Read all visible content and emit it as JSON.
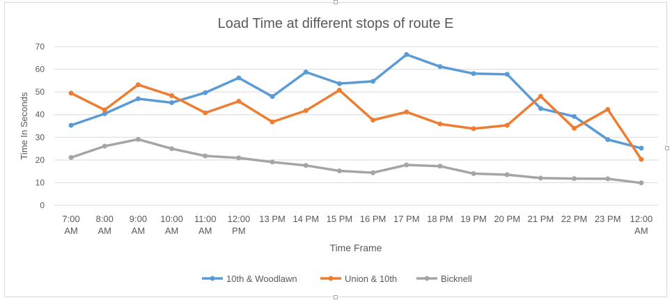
{
  "chart_data": {
    "type": "line",
    "title": "Load Time at different stops of route E",
    "xlabel": "Time Frame",
    "ylabel": "Time In Seconds",
    "ylim": [
      0,
      70
    ],
    "yticks": [
      0,
      10,
      20,
      30,
      40,
      50,
      60,
      70
    ],
    "grid": true,
    "legend_position": "bottom",
    "categories": [
      [
        "7:00",
        "AM"
      ],
      [
        "8:00",
        "AM"
      ],
      [
        "9:00",
        "AM"
      ],
      [
        "10:00",
        "AM"
      ],
      [
        "11:00",
        "AM"
      ],
      [
        "12:00",
        "PM"
      ],
      [
        "13 PM"
      ],
      [
        "14 PM"
      ],
      [
        "15 PM"
      ],
      [
        "16 PM"
      ],
      [
        "17 PM"
      ],
      [
        "18 PM"
      ],
      [
        "19 PM"
      ],
      [
        "20 PM"
      ],
      [
        "21 PM"
      ],
      [
        "22 PM"
      ],
      [
        "23 PM"
      ],
      [
        "12:00",
        "AM"
      ]
    ],
    "series": [
      {
        "name": "10th & Woodlawn",
        "color": "#5b9bd5",
        "values": [
          35.3,
          40.4,
          47,
          45.3,
          49.7,
          56.2,
          48,
          58.8,
          53.7,
          54.7,
          66.5,
          61.2,
          58.1,
          57.8,
          42.7,
          39.2,
          29,
          25.2
        ]
      },
      {
        "name": "Union & 10th",
        "color": "#ed7d31",
        "values": [
          49.5,
          42.1,
          53.2,
          48.4,
          40.8,
          45.9,
          36.8,
          41.8,
          50.8,
          37.6,
          41.2,
          35.9,
          33.8,
          35.3,
          48.1,
          34,
          42.3,
          20.3
        ]
      },
      {
        "name": "Bicknell",
        "color": "#a5a5a5",
        "values": [
          21.1,
          26.1,
          29.1,
          25,
          21.8,
          20.9,
          19.1,
          17.6,
          15.2,
          14.4,
          17.8,
          17.3,
          14,
          13.5,
          12,
          11.8,
          11.7,
          9.9
        ]
      }
    ]
  }
}
